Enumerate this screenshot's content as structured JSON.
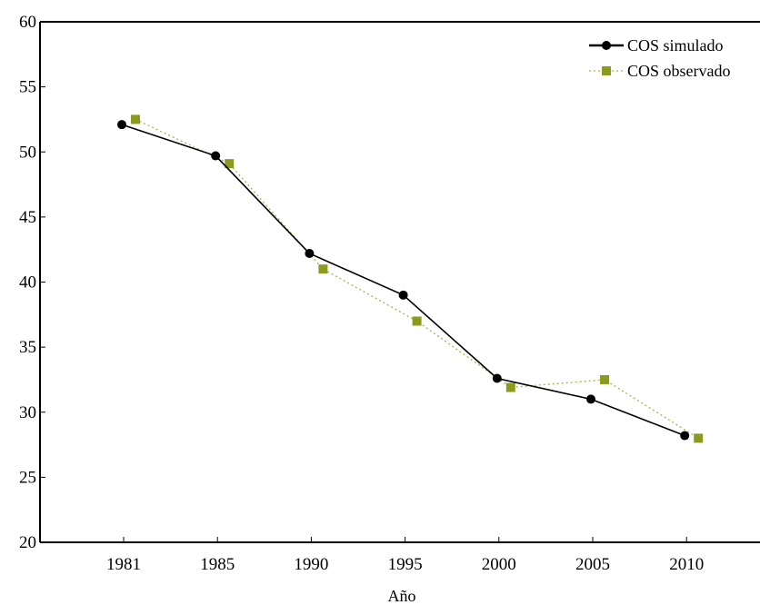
{
  "chart_data": {
    "type": "line",
    "title": "",
    "xlabel": "Año",
    "ylabel": "",
    "categories": [
      "1981",
      "1985",
      "1990",
      "1995",
      "2000",
      "2005",
      "2010"
    ],
    "ylim": [
      20,
      60
    ],
    "yticks": [
      20,
      25,
      30,
      35,
      40,
      45,
      50,
      55,
      60
    ],
    "grid": false,
    "legend_position": "top-right",
    "series": [
      {
        "name": "COS simulado",
        "values": [
          52.1,
          49.7,
          42.2,
          39.0,
          32.6,
          31.0,
          28.2
        ],
        "color": "#000000",
        "line_style": "solid",
        "marker": "circle"
      },
      {
        "name": "COS observado",
        "values": [
          52.5,
          49.1,
          41.0,
          37.0,
          31.9,
          32.5,
          28.0
        ],
        "color": "#8c9a1e",
        "line_style": "dotted",
        "marker": "square"
      }
    ]
  }
}
